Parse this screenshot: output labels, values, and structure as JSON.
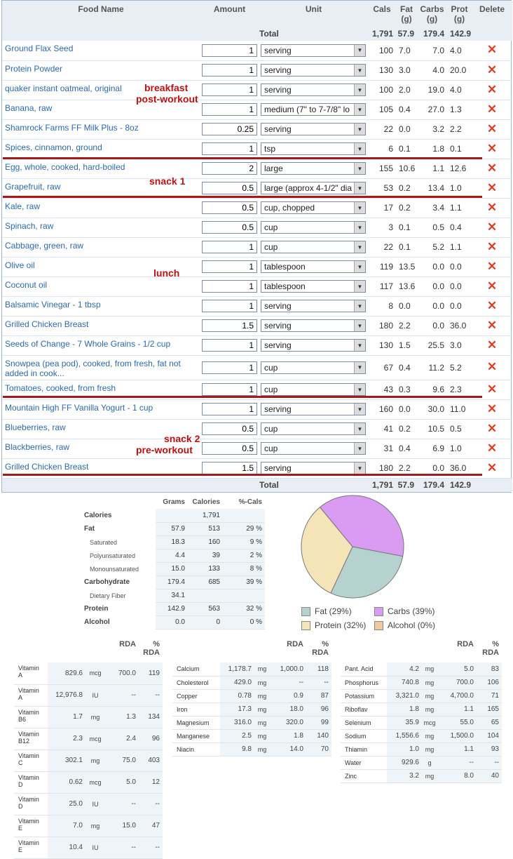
{
  "log": {
    "headers": {
      "food": "Food Name",
      "amount": "Amount",
      "unit": "Unit",
      "cals": "Cals",
      "fat": "Fat (g)",
      "carbs": "Carbs (g)",
      "prot": "Prot (g)",
      "del": "Delete"
    },
    "total_label": "Total",
    "totals": {
      "cals": "1,791",
      "fat": "57.9",
      "carbs": "179.4",
      "prot": "142.9"
    },
    "rows": [
      {
        "name": "Ground Flax Seed",
        "amount": "1",
        "unit": "serving",
        "cals": "100",
        "fat": "7.0",
        "carbs": "7.0",
        "prot": "4.0"
      },
      {
        "name": "Protein Powder",
        "amount": "1",
        "unit": "serving",
        "cals": "130",
        "fat": "3.0",
        "carbs": "4.0",
        "prot": "20.0"
      },
      {
        "name": "quaker instant oatmeal, original",
        "amount": "1",
        "unit": "serving",
        "cals": "100",
        "fat": "2.0",
        "carbs": "19.0",
        "prot": "4.0"
      },
      {
        "name": "Banana, raw",
        "amount": "1",
        "unit": "medium (7\" to 7-7/8\" lo",
        "cals": "105",
        "fat": "0.4",
        "carbs": "27.0",
        "prot": "1.3"
      },
      {
        "name": "Shamrock Farms FF Milk Plus - 8oz",
        "amount": "0.25",
        "unit": "serving",
        "cals": "22",
        "fat": "0.0",
        "carbs": "3.2",
        "prot": "2.2"
      },
      {
        "name": "Spices, cinnamon, ground",
        "amount": "1",
        "unit": "tsp",
        "cals": "6",
        "fat": "0.1",
        "carbs": "1.8",
        "prot": "0.1"
      },
      {
        "name": "Egg, whole, cooked, hard-boiled",
        "amount": "2",
        "unit": "large",
        "cals": "155",
        "fat": "10.6",
        "carbs": "1.1",
        "prot": "12.6"
      },
      {
        "name": "Grapefruit, raw",
        "amount": "0.5",
        "unit": "large (approx 4-1/2\" dia",
        "cals": "53",
        "fat": "0.2",
        "carbs": "13.4",
        "prot": "1.0"
      },
      {
        "name": "Kale, raw",
        "amount": "0.5",
        "unit": "cup, chopped",
        "cals": "17",
        "fat": "0.2",
        "carbs": "3.4",
        "prot": "1.1"
      },
      {
        "name": "Spinach, raw",
        "amount": "0.5",
        "unit": "cup",
        "cals": "3",
        "fat": "0.1",
        "carbs": "0.5",
        "prot": "0.4"
      },
      {
        "name": "Cabbage, green, raw",
        "amount": "1",
        "unit": "cup",
        "cals": "22",
        "fat": "0.1",
        "carbs": "5.2",
        "prot": "1.1"
      },
      {
        "name": "Olive oil",
        "amount": "1",
        "unit": "tablespoon",
        "cals": "119",
        "fat": "13.5",
        "carbs": "0.0",
        "prot": "0.0"
      },
      {
        "name": "Coconut oil",
        "amount": "1",
        "unit": "tablespoon",
        "cals": "117",
        "fat": "13.6",
        "carbs": "0.0",
        "prot": "0.0"
      },
      {
        "name": "Balsamic Vinegar - 1 tbsp",
        "amount": "1",
        "unit": "serving",
        "cals": "8",
        "fat": "0.0",
        "carbs": "0.0",
        "prot": "0.0"
      },
      {
        "name": "Grilled Chicken Breast",
        "amount": "1.5",
        "unit": "serving",
        "cals": "180",
        "fat": "2.2",
        "carbs": "0.0",
        "prot": "36.0"
      },
      {
        "name": "Seeds of Change - 7 Whole Grains - 1/2 cup",
        "amount": "1",
        "unit": "serving",
        "cals": "130",
        "fat": "1.5",
        "carbs": "25.5",
        "prot": "3.0"
      },
      {
        "name": "Snowpea (pea pod), cooked, from fresh, fat not added in cook...",
        "amount": "1",
        "unit": "cup",
        "cals": "67",
        "fat": "0.4",
        "carbs": "11.2",
        "prot": "5.2"
      },
      {
        "name": "Tomatoes, cooked, from fresh",
        "amount": "1",
        "unit": "cup",
        "cals": "43",
        "fat": "0.3",
        "carbs": "9.6",
        "prot": "2.3"
      },
      {
        "name": "Mountain High FF Vanilla Yogurt - 1 cup",
        "amount": "1",
        "unit": "serving",
        "cals": "160",
        "fat": "0.0",
        "carbs": "30.0",
        "prot": "11.0"
      },
      {
        "name": "Blueberries, raw",
        "amount": "0.5",
        "unit": "cup",
        "cals": "41",
        "fat": "0.2",
        "carbs": "10.5",
        "prot": "0.5"
      },
      {
        "name": "Blackberries, raw",
        "amount": "0.5",
        "unit": "cup",
        "cals": "31",
        "fat": "0.4",
        "carbs": "6.9",
        "prot": "1.0"
      },
      {
        "name": "Grilled Chicken Breast",
        "amount": "1.5",
        "unit": "serving",
        "cals": "180",
        "fat": "2.2",
        "carbs": "0.0",
        "prot": "36.0"
      }
    ]
  },
  "notes": {
    "breakfast": "breakfast",
    "post_workout": "post-workout",
    "snack1": "snack 1",
    "lunch": "lunch",
    "snack2": "snack 2",
    "pre_workout": "pre-workout"
  },
  "macro": {
    "headers": {
      "grams": "Grams",
      "calories": "Calories",
      "pct": "%-Cals"
    },
    "rows": [
      {
        "label": "Calories",
        "grams": "",
        "cal": "1,791",
        "pct": "",
        "sub": false
      },
      {
        "label": "Fat",
        "grams": "57.9",
        "cal": "513",
        "pct": "29 %",
        "sub": false
      },
      {
        "label": "Saturated",
        "grams": "18.3",
        "cal": "160",
        "pct": "9 %",
        "sub": true
      },
      {
        "label": "Polyunsaturated",
        "grams": "4.4",
        "cal": "39",
        "pct": "2 %",
        "sub": true
      },
      {
        "label": "Monounsaturated",
        "grams": "15.0",
        "cal": "133",
        "pct": "8 %",
        "sub": true
      },
      {
        "label": "Carbohydrate",
        "grams": "179.4",
        "cal": "685",
        "pct": "39 %",
        "sub": false
      },
      {
        "label": "Dietary Fiber",
        "grams": "34.1",
        "cal": "",
        "pct": "",
        "sub": true
      },
      {
        "label": "Protein",
        "grams": "142.9",
        "cal": "563",
        "pct": "32 %",
        "sub": false
      },
      {
        "label": "Alcohol",
        "grams": "0.0",
        "cal": "0",
        "pct": "0 %",
        "sub": false
      }
    ]
  },
  "chart_data": {
    "type": "pie",
    "categories": [
      "Fat",
      "Carbs",
      "Protein",
      "Alcohol"
    ],
    "values": [
      29,
      39,
      32,
      0
    ],
    "legend": [
      "Fat (29%)",
      "Carbs (39%)",
      "Protein (32%)",
      "Alcohol (0%)"
    ],
    "colors": [
      "#b5d2cf",
      "#d99cf2",
      "#f4e4b8",
      "#f2c99a"
    ]
  },
  "vit_headers": {
    "rda": "RDA",
    "pct": "% RDA"
  },
  "vit1": [
    {
      "n1": "Vitamin",
      "n2": "A",
      "v": "829.6",
      "u": "mcg",
      "r": "700.0",
      "p": "119",
      "c": "g"
    },
    {
      "n1": "Vitamin",
      "n2": "A",
      "v": "12,976.8",
      "u": "IU",
      "r": "--",
      "p": "--",
      "c": ""
    },
    {
      "n1": "Vitamin",
      "n2": "B6",
      "v": "1.7",
      "u": "mg",
      "r": "1.3",
      "p": "134",
      "c": "g"
    },
    {
      "n1": "Vitamin",
      "n2": "B12",
      "v": "2.3",
      "u": "mcg",
      "r": "2.4",
      "p": "96",
      "c": "r"
    },
    {
      "n1": "Vitamin",
      "n2": "C",
      "v": "302.1",
      "u": "mg",
      "r": "75.0",
      "p": "403",
      "c": "g"
    },
    {
      "n1": "Vitamin",
      "n2": "D",
      "v": "0.62",
      "u": "mcg",
      "r": "5.0",
      "p": "12",
      "c": "r"
    },
    {
      "n1": "Vitamin",
      "n2": "D",
      "v": "25.0",
      "u": "IU",
      "r": "--",
      "p": "--",
      "c": ""
    },
    {
      "n1": "Vitamin",
      "n2": "E",
      "v": "7.0",
      "u": "mg",
      "r": "15.0",
      "p": "47",
      "c": "r"
    },
    {
      "n1": "Vitamin",
      "n2": "E",
      "v": "10.4",
      "u": "IU",
      "r": "--",
      "p": "--",
      "c": ""
    }
  ],
  "vit2": [
    {
      "n": "Calcium",
      "v": "1,178.7",
      "u": "mg",
      "r": "1,000.0",
      "p": "118",
      "c": "g"
    },
    {
      "n": "Cholesterol",
      "v": "429.0",
      "u": "mg",
      "r": "--",
      "p": "--",
      "c": ""
    },
    {
      "n": "Copper",
      "v": "0.78",
      "u": "mg",
      "r": "0.9",
      "p": "87",
      "c": "r"
    },
    {
      "n": "Iron",
      "v": "17.3",
      "u": "mg",
      "r": "18.0",
      "p": "96",
      "c": "r"
    },
    {
      "n": "Magnesium",
      "v": "316.0",
      "u": "mg",
      "r": "320.0",
      "p": "99",
      "c": "r"
    },
    {
      "n": "Manganese",
      "v": "2.5",
      "u": "mg",
      "r": "1.8",
      "p": "140",
      "c": "g"
    },
    {
      "n": "Niacin",
      "v": "9.8",
      "u": "mg",
      "r": "14.0",
      "p": "70",
      "c": "r"
    }
  ],
  "vit3": [
    {
      "n": "Pant. Acid",
      "v": "4.2",
      "u": "mg",
      "r": "5.0",
      "p": "83",
      "c": "r"
    },
    {
      "n": "Phosphorus",
      "v": "740.8",
      "u": "mg",
      "r": "700.0",
      "p": "106",
      "c": "g"
    },
    {
      "n": "Potassium",
      "v": "3,321.0",
      "u": "mg",
      "r": "4,700.0",
      "p": "71",
      "c": "r"
    },
    {
      "n": "Riboflav",
      "v": "1.8",
      "u": "mg",
      "r": "1.1",
      "p": "165",
      "c": "g"
    },
    {
      "n": "Selenium",
      "v": "35.9",
      "u": "mcg",
      "r": "55.0",
      "p": "65",
      "c": "r"
    },
    {
      "n": "Sodium",
      "v": "1,556.6",
      "u": "mg",
      "r": "1,500.0",
      "p": "104",
      "c": "g"
    },
    {
      "n": "Thiamin",
      "v": "1.0",
      "u": "mg",
      "r": "1.1",
      "p": "93",
      "c": "r"
    },
    {
      "n": "Water",
      "v": "929.6",
      "u": "g",
      "r": "--",
      "p": "--",
      "c": ""
    },
    {
      "n": "Zinc",
      "v": "3.2",
      "u": "mg",
      "r": "8.0",
      "p": "40",
      "c": "r"
    }
  ]
}
